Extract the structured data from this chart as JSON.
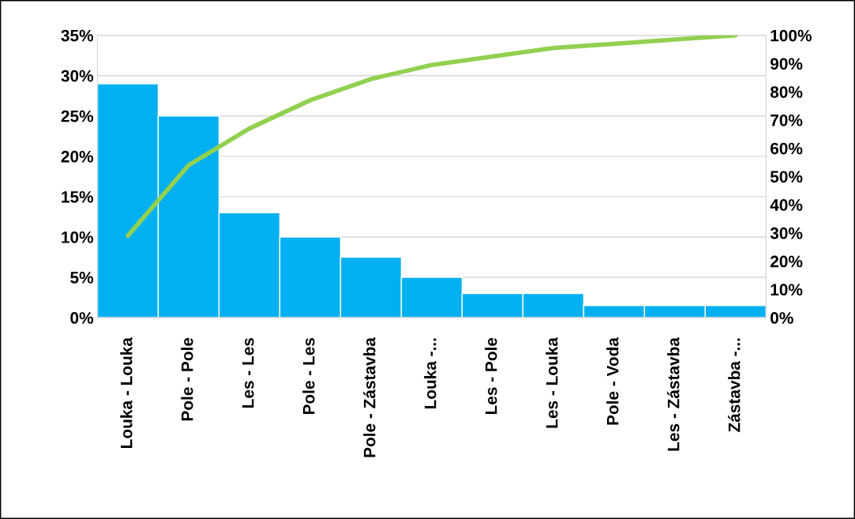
{
  "chart_data": {
    "type": "bar",
    "categories": [
      "Louka - Louka",
      "Pole - Pole",
      "Les - Les",
      "Pole - Les",
      "Pole - Zástavba",
      "Louka -...",
      "Les - Pole",
      "Les - Louka",
      "Pole - Voda",
      "Les - Zástavba",
      "Zástavba -..."
    ],
    "series": [
      {
        "color": "#00b0f0",
        "values": [
          29,
          25,
          13,
          10,
          7.5,
          5,
          3,
          3,
          1.5,
          1.5,
          1.5
        ]
      },
      {
        "type": "line",
        "axis": "y2",
        "color": "#92d050",
        "values": [
          29,
          54,
          67,
          77,
          84.5,
          89.5,
          92.5,
          95.5,
          97,
          98.5,
          100
        ]
      }
    ],
    "ylim": [
      0,
      35
    ],
    "yticks": [
      {
        "value": 0,
        "label": "0%"
      },
      {
        "value": 5,
        "label": "5%"
      },
      {
        "value": 10,
        "label": "10%"
      },
      {
        "value": 15,
        "label": "15%"
      },
      {
        "value": 20,
        "label": "20%"
      },
      {
        "value": 25,
        "label": "25%"
      },
      {
        "value": 30,
        "label": "30%"
      },
      {
        "value": 35,
        "label": "35%"
      }
    ],
    "y2lim": [
      0,
      100
    ],
    "y2ticks": [
      {
        "value": 0,
        "label": "0%"
      },
      {
        "value": 10,
        "label": "10%"
      },
      {
        "value": 20,
        "label": "20%"
      },
      {
        "value": 30,
        "label": "30%"
      },
      {
        "value": 40,
        "label": "40%"
      },
      {
        "value": 50,
        "label": "50%"
      },
      {
        "value": 60,
        "label": "60%"
      },
      {
        "value": 70,
        "label": "70%"
      },
      {
        "value": 80,
        "label": "80%"
      },
      {
        "value": 90,
        "label": "90%"
      },
      {
        "value": 100,
        "label": "100%"
      }
    ],
    "grid": "y",
    "marker": "none"
  }
}
